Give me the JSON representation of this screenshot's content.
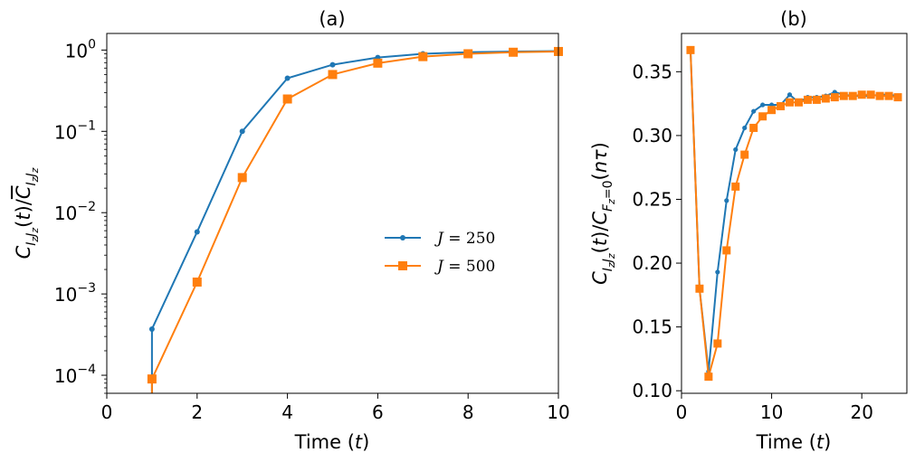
{
  "colors": {
    "blue": "#1f77b4",
    "orange": "#ff7f0e"
  },
  "chart_data": [
    {
      "type": "line",
      "title": "(a)",
      "xlabel": "Time (t)",
      "ylabel": "C_{IzJz}(t) / mean C_{IzJz}",
      "yscale": "log",
      "xlim": [
        0,
        10
      ],
      "ylim": [
        6e-05,
        1.6
      ],
      "xticks": [
        "0",
        "2",
        "4",
        "6",
        "8",
        "10"
      ],
      "yticks": [
        {
          "base": "10",
          "exp": "0",
          "value": 1
        },
        {
          "base": "10",
          "exp": "−1",
          "value": 0.1
        },
        {
          "base": "10",
          "exp": "−2",
          "value": 0.01
        },
        {
          "base": "10",
          "exp": "−3",
          "value": 0.001
        },
        {
          "base": "10",
          "exp": "−4",
          "value": 0.0001
        }
      ],
      "legend": {
        "position": "center-right"
      },
      "series": [
        {
          "name": "J = 250",
          "prefix": "J = ",
          "value": "250",
          "color": "#1f77b4",
          "marker": "circle",
          "x": [
            1,
            1,
            2,
            3,
            4,
            5,
            6,
            7,
            8,
            9,
            10
          ],
          "y": [
            6e-05,
            0.00037,
            0.0058,
            0.1,
            0.45,
            0.66,
            0.81,
            0.9,
            0.94,
            0.96,
            0.97
          ]
        },
        {
          "name": "J = 500",
          "prefix": "J = ",
          "value": "500",
          "color": "#ff7f0e",
          "marker": "square",
          "x": [
            1,
            1,
            2,
            3,
            4,
            5,
            6,
            7,
            8,
            9,
            10
          ],
          "y": [
            6e-05,
            9e-05,
            0.0014,
            0.027,
            0.25,
            0.5,
            0.69,
            0.83,
            0.9,
            0.94,
            0.96
          ]
        }
      ]
    },
    {
      "type": "line",
      "title": "(b)",
      "xlabel": "Time (t)",
      "ylabel": "C_{IzJz}(t) / C_{Fz=0}(nτ)",
      "xlim": [
        0,
        25
      ],
      "ylim": [
        0.098,
        0.38
      ],
      "xticks": [
        "0",
        "10",
        "20"
      ],
      "yticks": [
        "0.10",
        "0.15",
        "0.20",
        "0.25",
        "0.30",
        "0.35"
      ],
      "series": [
        {
          "name": "J = 250",
          "color": "#1f77b4",
          "marker": "circle",
          "x": [
            1,
            2,
            3,
            4,
            5,
            6,
            7,
            8,
            9,
            10,
            11,
            12,
            13,
            14,
            15,
            16,
            17,
            18,
            19,
            20,
            21,
            22,
            23,
            24
          ],
          "y": [
            0.367,
            0.18,
            0.115,
            0.193,
            0.249,
            0.289,
            0.306,
            0.319,
            0.324,
            0.324,
            0.324,
            0.332,
            0.326,
            0.33,
            0.33,
            0.331,
            0.334,
            0.332,
            0.331,
            0.331,
            0.331,
            0.332,
            0.332,
            0.331
          ]
        },
        {
          "name": "J = 500",
          "color": "#ff7f0e",
          "marker": "square",
          "x": [
            1,
            2,
            3,
            4,
            5,
            6,
            7,
            8,
            9,
            10,
            11,
            12,
            13,
            14,
            15,
            16,
            17,
            18,
            19,
            20,
            21,
            22,
            23,
            24
          ],
          "y": [
            0.367,
            0.18,
            0.111,
            0.137,
            0.21,
            0.26,
            0.285,
            0.306,
            0.315,
            0.32,
            0.323,
            0.326,
            0.326,
            0.328,
            0.328,
            0.329,
            0.33,
            0.331,
            0.331,
            0.332,
            0.332,
            0.331,
            0.331,
            0.33
          ]
        }
      ]
    }
  ]
}
